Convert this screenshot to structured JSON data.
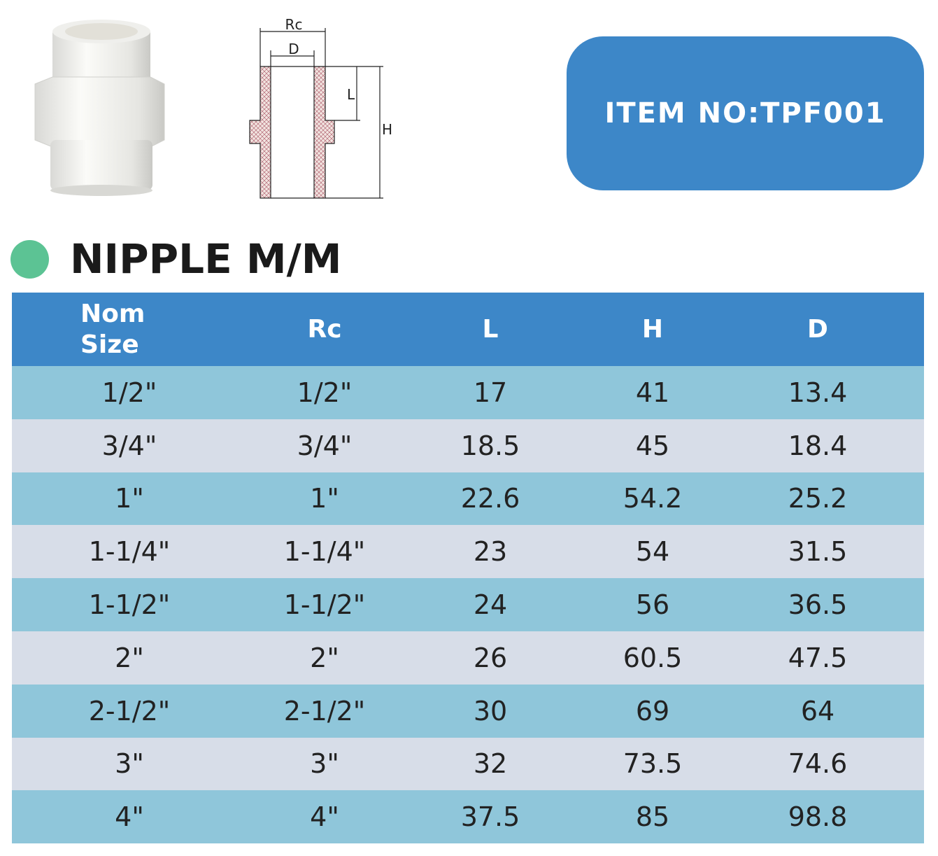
{
  "diagram": {
    "labels": {
      "rc": "Rc",
      "d": "D",
      "l": "L",
      "h": "H"
    }
  },
  "item_box": {
    "text": "ITEM NO:TPF001"
  },
  "title": "NIPPLE M/M",
  "table": {
    "columns": [
      "Nom Size",
      "Rc",
      "L",
      "H",
      "D"
    ],
    "rows": [
      [
        "1/2\"",
        "1/2\"",
        "17",
        "41",
        "13.4"
      ],
      [
        "3/4\"",
        "3/4\"",
        "18.5",
        "45",
        "18.4"
      ],
      [
        "1\"",
        "1\"",
        "22.6",
        "54.2",
        "25.2"
      ],
      [
        "1-1/4\"",
        "1-1/4\"",
        "23",
        "54",
        "31.5"
      ],
      [
        "1-1/2\"",
        "1-1/2\"",
        "24",
        "56",
        "36.5"
      ],
      [
        "2\"",
        "2\"",
        "26",
        "60.5",
        "47.5"
      ],
      [
        "2-1/2\"",
        "2-1/2\"",
        "30",
        "69",
        "64"
      ],
      [
        "3\"",
        "3\"",
        "32",
        "73.5",
        "74.6"
      ],
      [
        "4\"",
        "4\"",
        "37.5",
        "85",
        "98.8"
      ]
    ]
  }
}
